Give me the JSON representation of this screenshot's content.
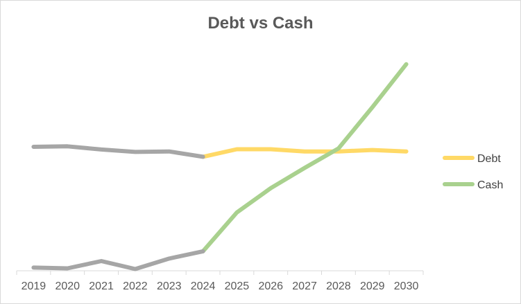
{
  "chart_data": {
    "type": "line",
    "title": "Debt vs Cash",
    "xlabel": "",
    "ylabel": "",
    "categories": [
      "2019",
      "2020",
      "2021",
      "2022",
      "2023",
      "2024",
      "2025",
      "2026",
      "2027",
      "2028",
      "2029",
      "2030"
    ],
    "ylim": [
      0,
      100
    ],
    "grid": false,
    "legend": "right",
    "colors": {
      "historical": "#a6a6a6",
      "debt": "#ffd966",
      "cash": "#a9d18e",
      "axis": "#d9d9d9",
      "text": "#595959"
    },
    "series": [
      {
        "name": "Debt",
        "historical_until": "2024",
        "values": [
          51,
          51.2,
          49.9,
          48.9,
          49.1,
          46.9,
          50,
          50,
          49.1,
          49.1,
          49.7,
          49.1
        ]
      },
      {
        "name": "Cash",
        "historical_until": "2024",
        "values": [
          1.3,
          1,
          4,
          0.7,
          5,
          8,
          24,
          34,
          42.3,
          50.3,
          67.3,
          85
        ]
      }
    ]
  }
}
